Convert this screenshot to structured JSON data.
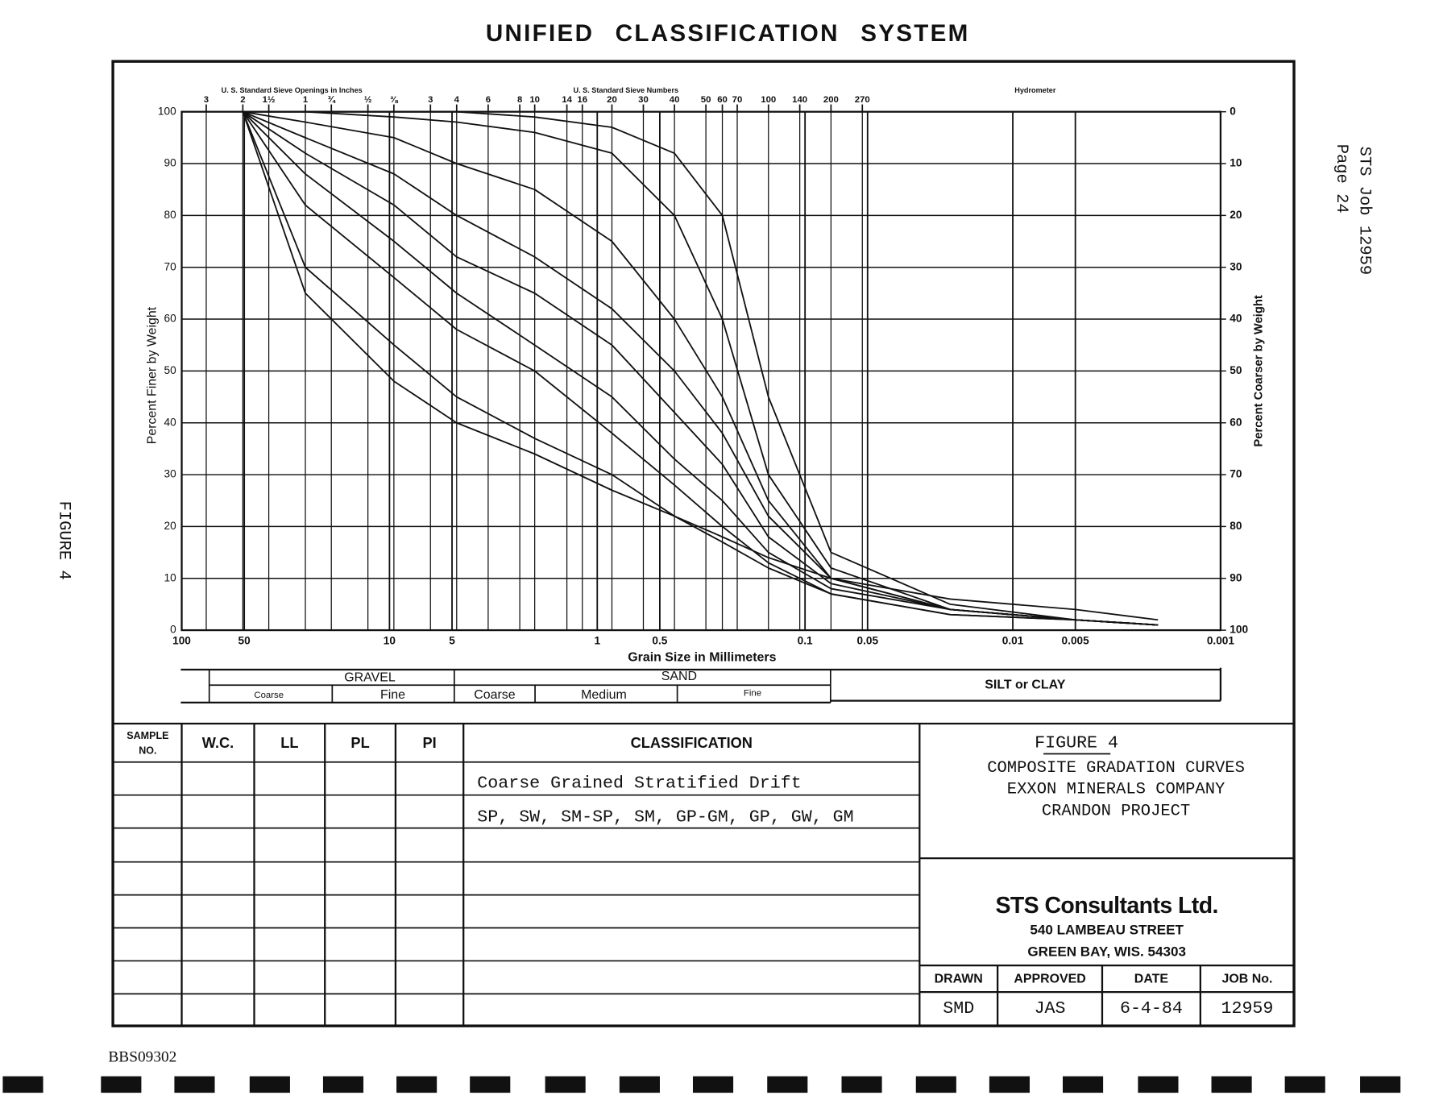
{
  "title": "UNIFIED CLASSIFICATION SYSTEM",
  "side_note": [
    "STS Job 12959",
    "Page 24"
  ],
  "figure_side_label": "FIGURE 4",
  "chart_data": {
    "type": "line",
    "xlabel": "Grain Size in Millimeters",
    "ylabel": "Percent Finer by Weight",
    "y2label": "Percent Coarser by Weight",
    "x_log": true,
    "grid": true,
    "xlim": [
      100,
      0.001
    ],
    "xticks": [
      100,
      50,
      10,
      5,
      1,
      0.5,
      0.1,
      0.05,
      0.01,
      0.005,
      0.001
    ],
    "ylim": [
      0,
      100
    ],
    "yticks": [
      0,
      10,
      20,
      30,
      40,
      50,
      60,
      70,
      80,
      90,
      100
    ],
    "y2lim": [
      100,
      0
    ],
    "y2ticks": [
      0,
      10,
      20,
      30,
      40,
      50,
      60,
      70,
      80,
      90,
      100
    ],
    "sieve_inches_title": "U. S. Standard Sieve Openings in Inches",
    "sieve_inches_ticks": [
      {
        "value": 76.2,
        "label": "3"
      },
      {
        "value": 50.8,
        "label": "2"
      },
      {
        "value": 38.1,
        "label": "1½"
      },
      {
        "value": 25.4,
        "label": "1"
      },
      {
        "value": 19.05,
        "label": "¾"
      },
      {
        "value": 12.7,
        "label": "½"
      },
      {
        "value": 9.525,
        "label": "⅜"
      }
    ],
    "sieve_numbers_title": "U. S. Standard Sieve Numbers",
    "sieve_number_ticks": [
      {
        "value": 6.35,
        "label": "3"
      },
      {
        "value": 4.75,
        "label": "4"
      },
      {
        "value": 3.35,
        "label": "6"
      },
      {
        "value": 2.36,
        "label": "8"
      },
      {
        "value": 2.0,
        "label": "10"
      },
      {
        "value": 1.4,
        "label": "14"
      },
      {
        "value": 1.18,
        "label": "16"
      },
      {
        "value": 0.85,
        "label": "20"
      },
      {
        "value": 0.6,
        "label": "30"
      },
      {
        "value": 0.425,
        "label": "40"
      },
      {
        "value": 0.3,
        "label": "50"
      },
      {
        "value": 0.25,
        "label": "60"
      },
      {
        "value": 0.212,
        "label": "70"
      },
      {
        "value": 0.15,
        "label": "100"
      },
      {
        "value": 0.106,
        "label": "140"
      },
      {
        "value": 0.075,
        "label": "200"
      },
      {
        "value": 0.053,
        "label": "270"
      }
    ],
    "hydrometer_title": "Hydrometer",
    "x": [
      50.8,
      25.4,
      9.5,
      4.75,
      2,
      0.85,
      0.425,
      0.25,
      0.15,
      0.075,
      0.02,
      0.005,
      0.002
    ],
    "series": [
      {
        "color": "#111111",
        "values": [
          100,
          100,
          100,
          100,
          99,
          97,
          92,
          80,
          45,
          15,
          5,
          2,
          1
        ]
      },
      {
        "color": "#111111",
        "values": [
          100,
          100,
          99,
          98,
          96,
          92,
          80,
          60,
          30,
          12,
          4,
          2,
          1
        ]
      },
      {
        "color": "#111111",
        "values": [
          100,
          98,
          95,
          90,
          85,
          75,
          60,
          45,
          25,
          10,
          4,
          2,
          1
        ]
      },
      {
        "color": "#111111",
        "values": [
          100,
          95,
          88,
          80,
          72,
          62,
          50,
          38,
          22,
          10,
          4,
          2,
          1
        ]
      },
      {
        "color": "#111111",
        "values": [
          100,
          92,
          82,
          72,
          65,
          55,
          42,
          32,
          18,
          9,
          4,
          2,
          1
        ]
      },
      {
        "color": "#111111",
        "values": [
          100,
          88,
          75,
          65,
          55,
          45,
          33,
          25,
          15,
          8,
          4,
          2,
          1
        ]
      },
      {
        "color": "#111111",
        "values": [
          100,
          82,
          68,
          58,
          50,
          38,
          28,
          20,
          13,
          7,
          3,
          2,
          1
        ]
      },
      {
        "color": "#111111",
        "values": [
          100,
          70,
          55,
          45,
          37,
          30,
          22,
          17,
          12,
          7,
          3,
          2,
          1
        ]
      },
      {
        "color": "#111111",
        "values": [
          100,
          65,
          48,
          40,
          34,
          27,
          22,
          18,
          14,
          10,
          6,
          4,
          2
        ]
      }
    ]
  },
  "soil_bands": {
    "gravel": "GRAVEL",
    "gravel_coarse": "Coarse",
    "gravel_fine": "Fine",
    "sand": "SAND",
    "sand_coarse": "Coarse",
    "sand_medium": "Medium",
    "sand_fine": "Fine",
    "silt_clay": "SILT or CLAY"
  },
  "table": {
    "headers": [
      [
        "SAMPLE",
        "NO."
      ],
      "W.C.",
      "LL",
      "PL",
      "PI",
      "CLASSIFICATION"
    ],
    "classification_rows": [
      "Coarse Grained Stratified Drift",
      "SP, SW, SM-SP, SM, GP-GM, GP, GW, GM"
    ]
  },
  "figure_block": {
    "figure": "FIGURE 4",
    "lines": [
      "COMPOSITE GRADATION CURVES",
      "EXXON MINERALS COMPANY",
      "CRANDON PROJECT"
    ]
  },
  "company": {
    "name": "STS Consultants Ltd.",
    "street": "540 LAMBEAU STREET",
    "city": "GREEN BAY, WIS. 54303"
  },
  "signoff": {
    "headers": [
      "DRAWN",
      "APPROVED",
      "DATE",
      "JOB No."
    ],
    "values": [
      "SMD",
      "JAS",
      "6-4-84",
      "12959"
    ]
  },
  "doc_id": "BBS09302"
}
